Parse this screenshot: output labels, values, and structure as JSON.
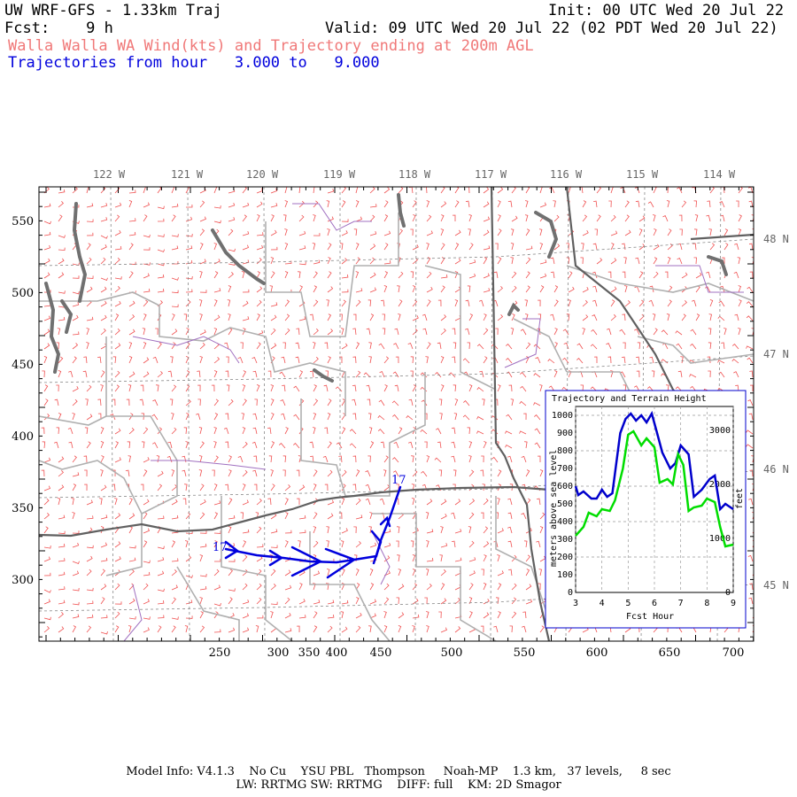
{
  "header": {
    "model_title": "UW WRF-GFS - 1.33km Traj",
    "init": "Init: 00 UTC Wed 20 Jul 22",
    "fcst": "Fcst:    9 h",
    "valid": "Valid: 09 UTC Wed 20 Jul 22 (02 PDT Wed 20 Jul 22)",
    "description": "Walla Walla WA Wind(kts) and Trajectory ending at 200m AGL",
    "traj_range": "Trajectories from hour   3.000 to   9.000"
  },
  "map": {
    "lon_labels": [
      "122 W",
      "121 W",
      "120 W",
      "119 W",
      "118 W",
      "117 W",
      "116 W",
      "115 W",
      "114 W"
    ],
    "lat_labels": [
      "48 N",
      "47 N",
      "46 N",
      "45 N"
    ],
    "x_ticks": [
      "250",
      "300",
      "350",
      "400",
      "450",
      "500",
      "550",
      "600",
      "650",
      "700"
    ],
    "y_ticks": [
      "550",
      "500",
      "450",
      "400",
      "350",
      "300"
    ],
    "traj_labels": [
      "17",
      "17"
    ],
    "barb_color": "#f05050",
    "traj_color": "#0000dd"
  },
  "inset": {
    "title": "Trajectory and Terrain Height",
    "xlabel": "Fcst Hour",
    "ylabel_left": "meters above sea level",
    "ylabel_right": "feet",
    "x_ticks": [
      "3",
      "4",
      "5",
      "6",
      "7",
      "8",
      "9"
    ],
    "y_ticks_left": [
      "0",
      "100",
      "200",
      "300",
      "400",
      "500",
      "600",
      "700",
      "800",
      "900",
      "1000"
    ],
    "y_ticks_right": [
      "0",
      "1000",
      "2000",
      "3000"
    ],
    "series": [
      {
        "color": "#0000cc",
        "x": [
          3.0,
          3.1,
          3.3,
          3.6,
          3.8,
          4.0,
          4.2,
          4.4,
          4.7,
          4.9,
          5.1,
          5.3,
          5.5,
          5.7,
          5.9,
          6.1,
          6.3,
          6.6,
          6.8,
          7.0,
          7.3,
          7.5,
          7.8,
          8.1,
          8.3,
          8.5,
          8.7,
          9.0
        ],
        "y": [
          600,
          550,
          570,
          530,
          530,
          580,
          540,
          560,
          900,
          980,
          1010,
          970,
          1000,
          960,
          1010,
          900,
          790,
          700,
          730,
          830,
          780,
          540,
          580,
          640,
          660,
          470,
          500,
          470
        ]
      },
      {
        "color": "#00dd00",
        "x": [
          3.0,
          3.3,
          3.5,
          3.8,
          4.0,
          4.3,
          4.5,
          4.8,
          5.0,
          5.2,
          5.5,
          5.7,
          6.0,
          6.2,
          6.5,
          6.7,
          6.9,
          7.1,
          7.3,
          7.5,
          7.8,
          8.0,
          8.3,
          8.5,
          8.7,
          9.0
        ],
        "y": [
          320,
          370,
          450,
          430,
          470,
          460,
          520,
          700,
          890,
          910,
          830,
          870,
          820,
          620,
          640,
          610,
          780,
          720,
          460,
          480,
          490,
          530,
          510,
          370,
          260,
          270
        ]
      }
    ],
    "xlim": [
      3,
      9
    ],
    "ylim": [
      0,
      1050
    ]
  },
  "footer": {
    "line1": "Model Info: V4.1.3    No Cu    YSU PBL   Thompson     Noah-MP    1.3 km,   37 levels,     8 sec",
    "line2": "LW: RRTMG SW: RRTMG    DIFF: full    KM: 2D Smagor"
  }
}
